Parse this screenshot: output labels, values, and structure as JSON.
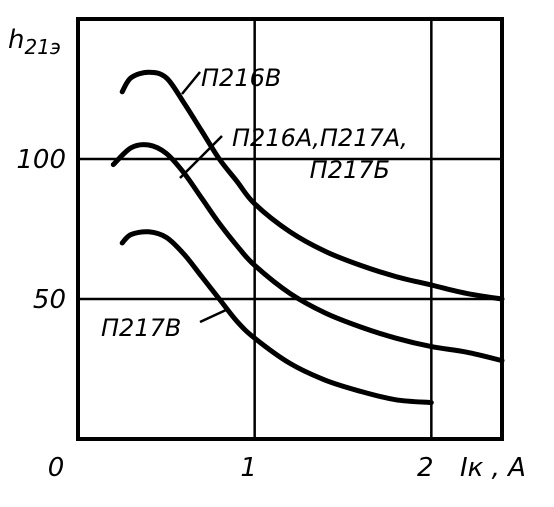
{
  "chart_data": {
    "type": "line",
    "title": "",
    "ylabel": "h21э",
    "xlabel": "Iк , А",
    "xlim": [
      0,
      2.4
    ],
    "ylim": [
      0,
      150
    ],
    "grid": true,
    "x_ticks": [
      {
        "value": 0,
        "label": "0"
      },
      {
        "value": 1,
        "label": "1"
      },
      {
        "value": 2,
        "label": "2"
      }
    ],
    "y_ticks": [
      {
        "value": 50,
        "label": "50"
      },
      {
        "value": 100,
        "label": "100"
      }
    ],
    "series": [
      {
        "name": "П216В",
        "label_lines": [
          "П216В"
        ],
        "x": [
          0.25,
          0.3,
          0.4,
          0.5,
          0.6,
          0.7,
          0.8,
          0.9,
          1.0,
          1.2,
          1.4,
          1.6,
          1.8,
          2.0,
          2.2,
          2.4
        ],
        "y": [
          124,
          129,
          131,
          129,
          120,
          110,
          100,
          92,
          84,
          74,
          67,
          62,
          58,
          55,
          52,
          50
        ]
      },
      {
        "name": "П216А,П217А, П217Б",
        "label_lines": [
          "П216А,П217А,",
          "П217Б"
        ],
        "x": [
          0.2,
          0.3,
          0.4,
          0.5,
          0.6,
          0.7,
          0.8,
          0.9,
          1.0,
          1.2,
          1.4,
          1.6,
          1.8,
          2.0,
          2.2,
          2.4
        ],
        "y": [
          98,
          104,
          105,
          102,
          95,
          86,
          77,
          69,
          62,
          52,
          45,
          40,
          36,
          33,
          31,
          28
        ]
      },
      {
        "name": "П217В",
        "label_lines": [
          "П217В"
        ],
        "x": [
          0.25,
          0.3,
          0.4,
          0.5,
          0.6,
          0.7,
          0.8,
          0.9,
          1.0,
          1.2,
          1.4,
          1.6,
          1.8,
          2.0
        ],
        "y": [
          70,
          73,
          74,
          72,
          66,
          58,
          50,
          42,
          36,
          27,
          21,
          17,
          14,
          13
        ]
      }
    ]
  }
}
